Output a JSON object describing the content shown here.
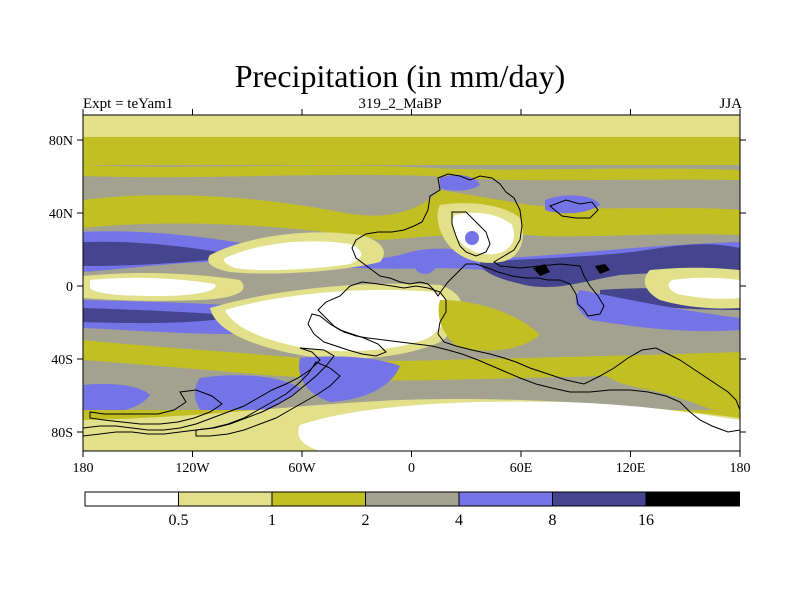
{
  "title": "Precipitation (in mm/day)",
  "subtitle_left": "Expt = teYam1",
  "subtitle_center": "319_2_MaBP",
  "subtitle_right": "JJA",
  "colors": {
    "c0": "#ffffff",
    "c1": "#e2e08a",
    "c2": "#c2bf24",
    "c3": "#a3a291",
    "c4": "#7474e6",
    "c5": "#45458f",
    "c6": "#000000",
    "coast": "#000000"
  },
  "map": {
    "lon_ticks": [
      "180",
      "120W",
      "60W",
      "0",
      "60E",
      "120E",
      "180"
    ],
    "lat_ticks": [
      "80N",
      "40N",
      "0",
      "40S",
      "80S"
    ]
  },
  "legend": {
    "levels": [
      "0.5",
      "1",
      "2",
      "4",
      "8",
      "16"
    ]
  }
}
